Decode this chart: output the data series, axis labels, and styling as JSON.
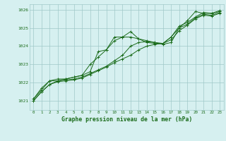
{
  "title": "Graphe pression niveau de la mer (hPa)",
  "bg_color": "#d6f0f0",
  "grid_color": "#a0c8c8",
  "line_color": "#1a6b1a",
  "x_labels": [
    "0",
    "1",
    "2",
    "3",
    "4",
    "5",
    "6",
    "7",
    "8",
    "9",
    "10",
    "11",
    "12",
    "13",
    "14",
    "15",
    "16",
    "17",
    "18",
    "19",
    "20",
    "21",
    "22",
    "23"
  ],
  "ylim": [
    1020.5,
    1026.3
  ],
  "yticks": [
    1021,
    1022,
    1023,
    1024,
    1025,
    1026
  ],
  "series": [
    [
      1021.1,
      1021.6,
      1022.1,
      1022.1,
      1022.2,
      1022.3,
      1022.4,
      1022.6,
      1023.7,
      1023.8,
      1024.5,
      1024.5,
      1024.8,
      1024.4,
      1024.3,
      1024.2,
      1024.1,
      1024.2,
      1025.0,
      1025.4,
      1025.9,
      1025.8,
      1025.8,
      1025.9
    ],
    [
      1021.1,
      1021.7,
      1022.1,
      1022.2,
      1022.2,
      1022.3,
      1022.4,
      1023.0,
      1023.4,
      1023.8,
      1024.3,
      1024.5,
      1024.5,
      1024.4,
      1024.2,
      1024.15,
      1024.15,
      1024.5,
      1025.1,
      1025.3,
      1025.6,
      1025.85,
      1025.8,
      1025.95
    ],
    [
      1021.0,
      1021.5,
      1021.9,
      1022.1,
      1022.15,
      1022.2,
      1022.3,
      1022.5,
      1022.7,
      1022.9,
      1023.2,
      1023.5,
      1024.0,
      1024.2,
      1024.25,
      1024.2,
      1024.15,
      1024.5,
      1025.0,
      1025.2,
      1025.55,
      1025.75,
      1025.7,
      1025.85
    ],
    [
      1021.0,
      1021.5,
      1021.9,
      1022.05,
      1022.1,
      1022.15,
      1022.25,
      1022.45,
      1022.65,
      1022.85,
      1023.1,
      1023.3,
      1023.5,
      1023.8,
      1024.0,
      1024.1,
      1024.15,
      1024.35,
      1024.85,
      1025.15,
      1025.5,
      1025.7,
      1025.65,
      1025.8
    ]
  ]
}
